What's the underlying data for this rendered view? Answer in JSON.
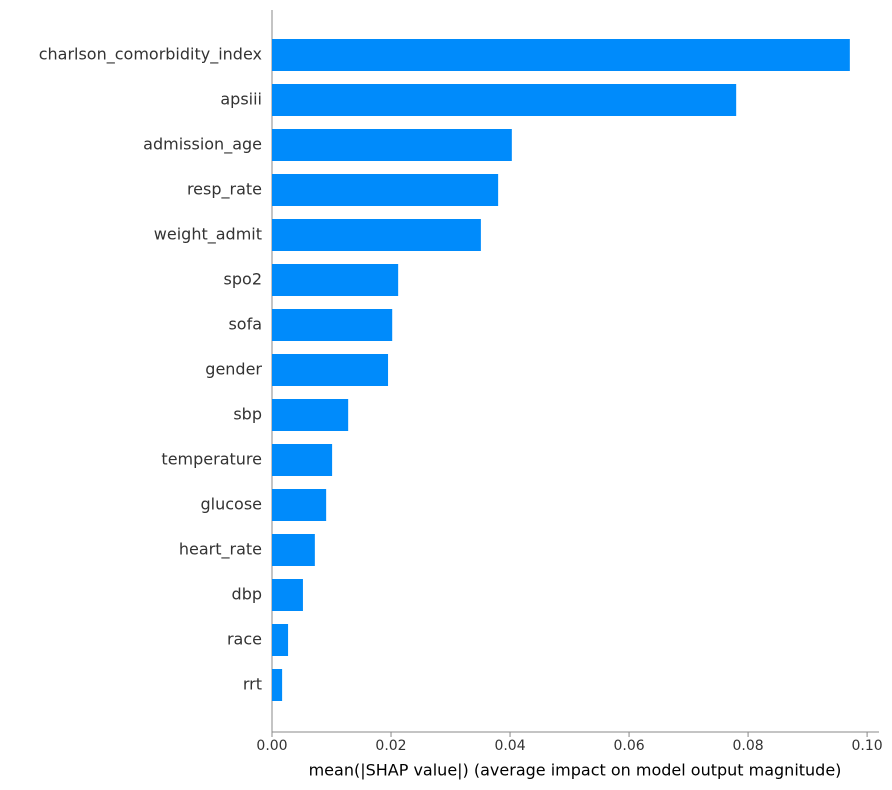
{
  "chart_data": {
    "type": "bar",
    "orientation": "horizontal",
    "x_label": "mean(|SHAP value|) (average impact on model output magnitude)",
    "categories": [
      "charlson_comorbidity_index",
      "apsiii",
      "admission_age",
      "resp_rate",
      "weight_admit",
      "spo2",
      "sofa",
      "gender",
      "sbp",
      "temperature",
      "glucose",
      "heart_rate",
      "dbp",
      "race",
      "rrt"
    ],
    "values": [
      0.0971,
      0.078,
      0.0403,
      0.038,
      0.0351,
      0.0212,
      0.0202,
      0.0195,
      0.0128,
      0.0101,
      0.0091,
      0.0072,
      0.0052,
      0.0027,
      0.0017
    ],
    "color": "#008bfb",
    "xlim": [
      0,
      0.102
    ],
    "xticks": [
      {
        "value": 0,
        "label": "0.00"
      },
      {
        "value": 0.02,
        "label": "0.02"
      },
      {
        "value": 0.04,
        "label": "0.04"
      },
      {
        "value": 0.06,
        "label": "0.06"
      },
      {
        "value": 0.08,
        "label": "0.08"
      },
      {
        "value": 0.1,
        "label": "0.10"
      }
    ],
    "grid": false
  }
}
